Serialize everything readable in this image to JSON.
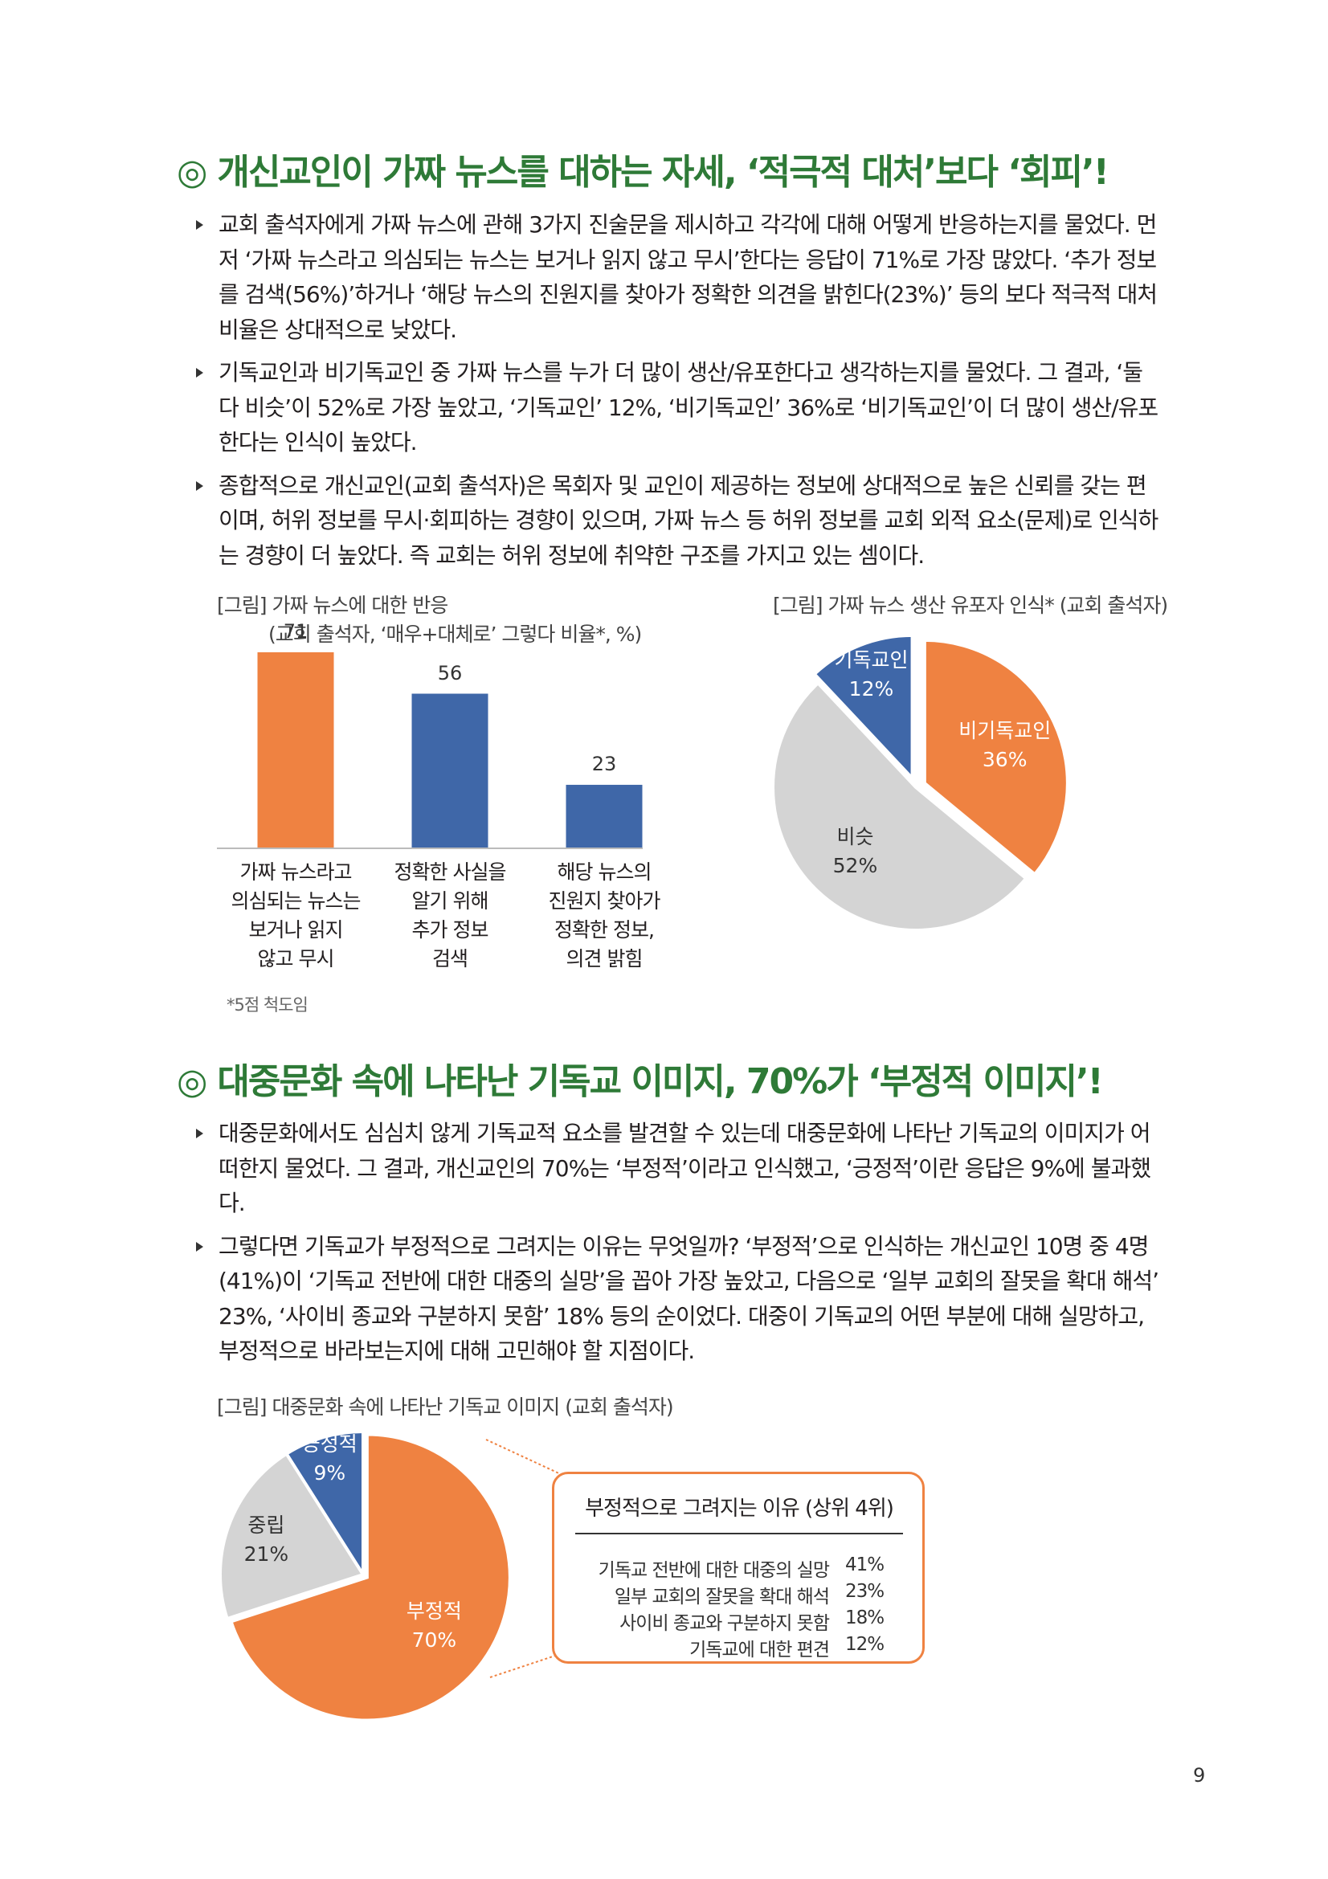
{
  "section1": {
    "title_mark": "◎",
    "title": "개신교인이 가짜 뉴스를 대하는 자세, ‘적극적 대처’보다 ‘회피’!",
    "paragraphs": [
      {
        "lines": [
          "교회 출석자에게 가짜 뉴스에 관해 3가지 진술문을 제시하고 각각에 대해 어떻게 반응하는지를 물었다. 먼",
          "저 ‘가짜 뉴스라고 의심되는 뉴스는 보거나 읽지 않고 무시’한다는 응답이 71%로 가장 많았다. ‘추가 정보",
          "를 검색(56%)’하거나 ‘해당 뉴스의 진원지를 찾아가 정확한 의견을 밝힌다(23%)’ 등의 보다 적극적 대처",
          "비율은 상대적으로 낮았다."
        ]
      },
      {
        "lines": [
          "기독교인과 비기독교인 중 가짜 뉴스를 누가 더 많이 생산/유포한다고 생각하는지를 물었다. 그 결과, ‘둘",
          "다 비슷’이 52%로 가장 높았고, ‘기독교인’ 12%, ‘비기독교인’ 36%로 ‘비기독교인’이 더 많이 생산/유포",
          "한다는 인식이 높았다."
        ]
      },
      {
        "lines": [
          "종합적으로 개신교인(교회 출석자)은 목회자 및 교인이 제공하는 정보에 상대적으로 높은 신뢰를 갖는 편",
          "이며, 허위 정보를 무시·회피하는 경향이 있으며, 가짜 뉴스 등 허위 정보를 교회 외적 요소(문제)로 인식하",
          "는 경향이 더 높았다. 즉 교회는 허위 정보에 취약한 구조를 가지고 있는 셈이다."
        ]
      }
    ]
  },
  "figure1": {
    "caption_line1": "[그림] 가짜 뉴스에 대한 반응",
    "caption_line2": "(교회 출석자, ‘매우+대체로’ 그렇다 비율*, %)",
    "note": "*5점 척도임"
  },
  "figure2": {
    "caption": "[그림] 가짜 뉴스 생산 유포자 인식* (교회 출석자)"
  },
  "section2": {
    "title_mark": "◎",
    "title": "대중문화 속에 나타난 기독교 이미지, 70%가 ‘부정적 이미지’!",
    "paragraphs": [
      {
        "lines": [
          "대중문화에서도 심심치 않게 기독교적 요소를 발견할 수 있는데 대중문화에 나타난 기독교의 이미지가 어",
          "떠한지 물었다. 그 결과, 개신교인의 70%는 ‘부정적’이라고 인식했고, ‘긍정적’이란 응답은 9%에 불과했",
          "다."
        ]
      },
      {
        "lines": [
          "그렇다면 기독교가 부정적으로 그려지는 이유는 무엇일까? ‘부정적’으로 인식하는 개신교인 10명 중 4명",
          "(41%)이 ‘기독교 전반에 대한 대중의 실망’을 꼽아 가장 높았고, 다음으로 ‘일부 교회의 잘못을 확대 해석’",
          "23%, ‘사이비 종교와 구분하지 못함’ 18% 등의 순이었다. 대중이 기독교의 어떤 부분에 대해 실망하고,",
          "부정적으로 바라보는지에 대해 고민해야 할 지점이다."
        ]
      }
    ]
  },
  "figure3": {
    "caption": "[그림] 대중문화 속에 나타난 기독교 이미지 (교회 출석자)",
    "reasons_title": "부정적으로 그려지는 이유 (상위 4위)",
    "reasons": [
      {
        "label": "기독교 전반에 대한 대중의 실망",
        "value": "41%"
      },
      {
        "label": "일부 교회의 잘못을 확대 해석",
        "value": "23%"
      },
      {
        "label": "사이비 종교와 구분하지 못함",
        "value": "18%"
      },
      {
        "label": "기독교에 대한 편견",
        "value": "12%"
      }
    ]
  },
  "page_number": "9",
  "chart_data": [
    {
      "type": "bar",
      "title": "[그림] 가짜 뉴스에 대한 반응",
      "subtitle": "(교회 출석자, ‘매우+대체로’ 그렇다 비율*, %)",
      "categories": [
        [
          "가짜 뉴스라고",
          "의심되는 뉴스는",
          "보거나 읽지",
          "않고 무시"
        ],
        [
          "정확한 사실을",
          "알기 위해",
          "추가 정보",
          "검색"
        ],
        [
          "해당 뉴스의",
          "진원지 찾아가",
          "정확한 정보,",
          "의견 밝힘"
        ]
      ],
      "values": [
        71,
        56,
        23
      ],
      "colors": [
        "#ef8241",
        "#3f67a8",
        "#3f67a8"
      ],
      "ylim": [
        0,
        80
      ],
      "grid": false
    },
    {
      "type": "pie",
      "title": "[그림] 가짜 뉴스 생산 유포자 인식* (교회 출석자)",
      "slices": [
        {
          "label": "기독교인",
          "value": 12,
          "value_label": "12%",
          "color": "#3f67a8",
          "text_color": "#ffffff",
          "exploded": true
        },
        {
          "label": "비기독교인",
          "value": 36,
          "value_label": "36%",
          "color": "#ef8241",
          "text_color": "#ffffff",
          "exploded": true
        },
        {
          "label": "비슷",
          "value": 52,
          "value_label": "52%",
          "color": "#d4d4d4",
          "text_color": "#333333",
          "exploded": false
        }
      ]
    },
    {
      "type": "pie",
      "title": "[그림] 대중문화 속에 나타난 기독교 이미지 (교회 출석자)",
      "slices": [
        {
          "label": "부정적",
          "value": 70,
          "value_label": "70%",
          "color": "#ef8241",
          "text_color": "#ffffff",
          "exploded": true
        },
        {
          "label": "중립",
          "value": 21,
          "value_label": "21%",
          "color": "#d4d4d4",
          "text_color": "#333333",
          "exploded": false
        },
        {
          "label": "긍정적",
          "value": 9,
          "value_label": "9%",
          "color": "#3f67a8",
          "text_color": "#ffffff",
          "exploded": false
        }
      ]
    }
  ]
}
